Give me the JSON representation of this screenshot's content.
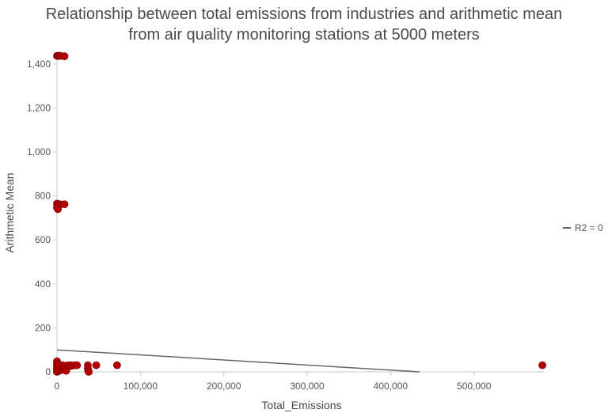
{
  "chart_data": {
    "type": "scatter",
    "title_line1": "Relationship between total emissions from industries and arithmetic mean",
    "title_line2": "from air quality monitoring stations at 5000 meters",
    "xlabel": "Total_Emissions",
    "ylabel": "Arithmetic Mean",
    "xlim": [
      0,
      580000
    ],
    "ylim": [
      0,
      1450
    ],
    "x_ticks": [
      0,
      100000,
      200000,
      300000,
      400000,
      500000
    ],
    "x_tick_labels": [
      "0",
      "100,000",
      "200,000",
      "300,000",
      "400,000",
      "500,000"
    ],
    "y_ticks": [
      0,
      200,
      400,
      600,
      800,
      1000,
      1200,
      1400
    ],
    "y_tick_labels": [
      "0",
      "200",
      "400",
      "600",
      "800",
      "1,000",
      "1,200",
      "1,400"
    ],
    "grid": false,
    "legend": {
      "position": "right",
      "label": "R2 = 0"
    },
    "trendline": {
      "x": [
        0,
        435000
      ],
      "y": [
        100,
        0
      ]
    },
    "point_color": "#b00000",
    "points": [
      {
        "x": 0,
        "y": 1437
      },
      {
        "x": 1000,
        "y": 1437
      },
      {
        "x": 2000,
        "y": 1437
      },
      {
        "x": 3000,
        "y": 1437
      },
      {
        "x": 4000,
        "y": 1437
      },
      {
        "x": 9000,
        "y": 1435
      },
      {
        "x": 0,
        "y": 765
      },
      {
        "x": 1000,
        "y": 760
      },
      {
        "x": 2000,
        "y": 755
      },
      {
        "x": 4000,
        "y": 762
      },
      {
        "x": 0,
        "y": 748
      },
      {
        "x": 1000,
        "y": 740
      },
      {
        "x": 9000,
        "y": 762
      },
      {
        "x": 0,
        "y": 48
      },
      {
        "x": 0,
        "y": 40
      },
      {
        "x": 0,
        "y": 32
      },
      {
        "x": 0,
        "y": 25
      },
      {
        "x": 0,
        "y": 18
      },
      {
        "x": 0,
        "y": 12
      },
      {
        "x": 0,
        "y": 6
      },
      {
        "x": 0,
        "y": 0
      },
      {
        "x": 1500,
        "y": 35
      },
      {
        "x": 2500,
        "y": 20
      },
      {
        "x": 3000,
        "y": 5
      },
      {
        "x": 4500,
        "y": 28
      },
      {
        "x": 5500,
        "y": 15
      },
      {
        "x": 7000,
        "y": 30
      },
      {
        "x": 8000,
        "y": 10
      },
      {
        "x": 9500,
        "y": 22
      },
      {
        "x": 11000,
        "y": 5
      },
      {
        "x": 13000,
        "y": 30
      },
      {
        "x": 14500,
        "y": 25
      },
      {
        "x": 16000,
        "y": 30
      },
      {
        "x": 18000,
        "y": 28
      },
      {
        "x": 21000,
        "y": 30
      },
      {
        "x": 24000,
        "y": 30
      },
      {
        "x": 37000,
        "y": 30
      },
      {
        "x": 37000,
        "y": 15
      },
      {
        "x": 37500,
        "y": 5
      },
      {
        "x": 38000,
        "y": 0
      },
      {
        "x": 47000,
        "y": 30
      },
      {
        "x": 72000,
        "y": 30
      },
      {
        "x": 582000,
        "y": 30
      }
    ]
  }
}
